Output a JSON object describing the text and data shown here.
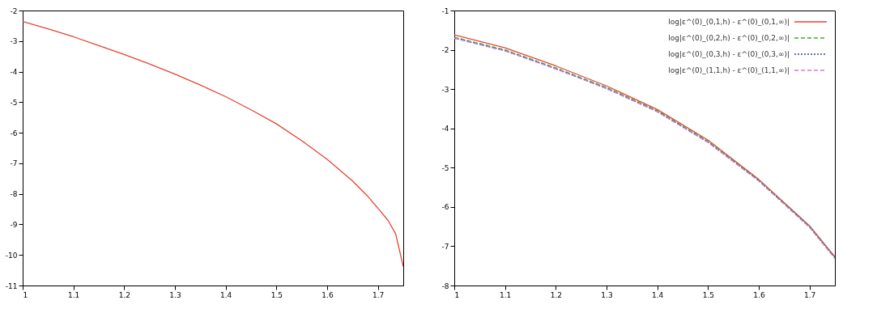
{
  "chart_data": [
    {
      "type": "line",
      "x": [
        1,
        1.05,
        1.1,
        1.15,
        1.2,
        1.25,
        1.3,
        1.35,
        1.4,
        1.45,
        1.5,
        1.55,
        1.6,
        1.65,
        1.68,
        1.7,
        1.72,
        1.735,
        1.75
      ],
      "series": [
        {
          "color": "#e8432f",
          "line_style": "solid",
          "values": [
            -2.36,
            -2.6,
            -2.86,
            -3.15,
            -3.44,
            -3.75,
            -4.08,
            -4.44,
            -4.82,
            -5.25,
            -5.71,
            -6.26,
            -6.87,
            -7.58,
            -8.08,
            -8.47,
            -8.87,
            -9.31,
            -10.38
          ]
        }
      ],
      "xlim": [
        1,
        1.75
      ],
      "xticks": [
        1,
        1.1,
        1.2,
        1.3,
        1.4,
        1.5,
        1.6,
        1.7
      ],
      "ylim": [
        -11,
        -2
      ],
      "yticks": [
        -11,
        -10,
        -9,
        -8,
        -7,
        -6,
        -5,
        -4,
        -3,
        -2
      ],
      "grid": false
    },
    {
      "type": "line",
      "x": [
        1,
        1.1,
        1.2,
        1.3,
        1.4,
        1.5,
        1.6,
        1.7,
        1.75
      ],
      "series": [
        {
          "name": "log|ε^(0)_(0,1,h) - ε^(0)_(0,1,∞)|",
          "color": "#e8432f",
          "line_style": "solid",
          "values": [
            -1.62,
            -1.95,
            -2.41,
            -2.92,
            -3.52,
            -4.3,
            -5.3,
            -6.48,
            -7.27
          ]
        },
        {
          "name": "log|ε^(0)_(0,2,h) - ε^(0)_(0,2,∞)|",
          "color": "#3cae2a",
          "line_style": "dashed",
          "values": [
            -1.68,
            -2.0,
            -2.46,
            -2.96,
            -3.55,
            -4.33,
            -5.32,
            -6.5,
            -7.29
          ]
        },
        {
          "name": "log|ε^(0)_(0,3,h) - ε^(0)_(0,3,∞)|",
          "color": "#2a44a8",
          "line_style": "dotted",
          "values": [
            -1.7,
            -2.02,
            -2.48,
            -2.98,
            -3.57,
            -4.35,
            -5.33,
            -6.51,
            -7.3
          ]
        },
        {
          "name": "log|ε^(0)_(1,1,h) - ε^(0)_(1,1,∞)|",
          "color": "#d27ad2",
          "line_style": "dashed",
          "values": [
            -1.71,
            -2.03,
            -2.49,
            -2.99,
            -3.58,
            -4.36,
            -5.34,
            -6.52,
            -7.31
          ]
        }
      ],
      "xlim": [
        1,
        1.75
      ],
      "xticks": [
        1,
        1.1,
        1.2,
        1.3,
        1.4,
        1.5,
        1.6,
        1.7
      ],
      "ylim": [
        -8,
        -1
      ],
      "yticks": [
        -8,
        -7,
        -6,
        -5,
        -4,
        -3,
        -2,
        -1
      ],
      "grid": false,
      "legend": "top right"
    }
  ]
}
